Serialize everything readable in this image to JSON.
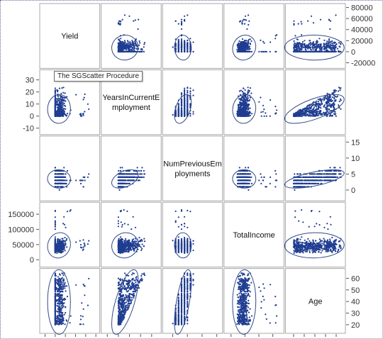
{
  "tooltip": "The SGScatter Procedure",
  "chart_data": {
    "type": "scatter",
    "variables": [
      {
        "name": "Yield",
        "label_lines": [
          "Yield"
        ],
        "range": [
          -25000,
          82000
        ],
        "ticks": [
          -20000,
          0,
          20000,
          40000,
          60000,
          80000
        ],
        "tick_labels": [
          "-20000",
          "0",
          "20000",
          "40000",
          "60000",
          "80000"
        ],
        "axis_side": "right"
      },
      {
        "name": "YearsInCurrentEmployment",
        "label_lines": [
          "YearsInCurrentE",
          "mployment"
        ],
        "range": [
          -13,
          36
        ],
        "ticks": [
          -10,
          0,
          10,
          20,
          30
        ],
        "tick_labels": [
          "-10",
          "0",
          "10",
          "20",
          "30"
        ],
        "axis_side": "left"
      },
      {
        "name": "NumPreviousEmployments",
        "label_lines": [
          "NumPreviousEm",
          "ployments"
        ],
        "range": [
          -2.5,
          16
        ],
        "ticks": [
          0,
          5,
          10,
          15
        ],
        "tick_labels": [
          "0",
          "5",
          "10",
          "15"
        ],
        "axis_side": "right"
      },
      {
        "name": "TotalIncome",
        "label_lines": [
          "TotalIncome"
        ],
        "range": [
          -15000,
          180000
        ],
        "ticks": [
          0,
          50000,
          100000,
          150000
        ],
        "tick_labels": [
          "0",
          "50000",
          "100000",
          "150000"
        ],
        "axis_side": "left"
      },
      {
        "name": "Age",
        "label_lines": [
          "Age"
        ],
        "range": [
          15,
          66
        ],
        "ticks": [
          20,
          30,
          40,
          50,
          60
        ],
        "tick_labels": [
          "20",
          "30",
          "40",
          "50",
          "60"
        ],
        "axis_side": "right"
      }
    ],
    "ellipse": "prediction",
    "marker": "circle",
    "colors": {
      "marker": "#1f3d91",
      "ellipse": "#334a88",
      "frame": "#a8a8a8",
      "text": "#111111"
    }
  }
}
